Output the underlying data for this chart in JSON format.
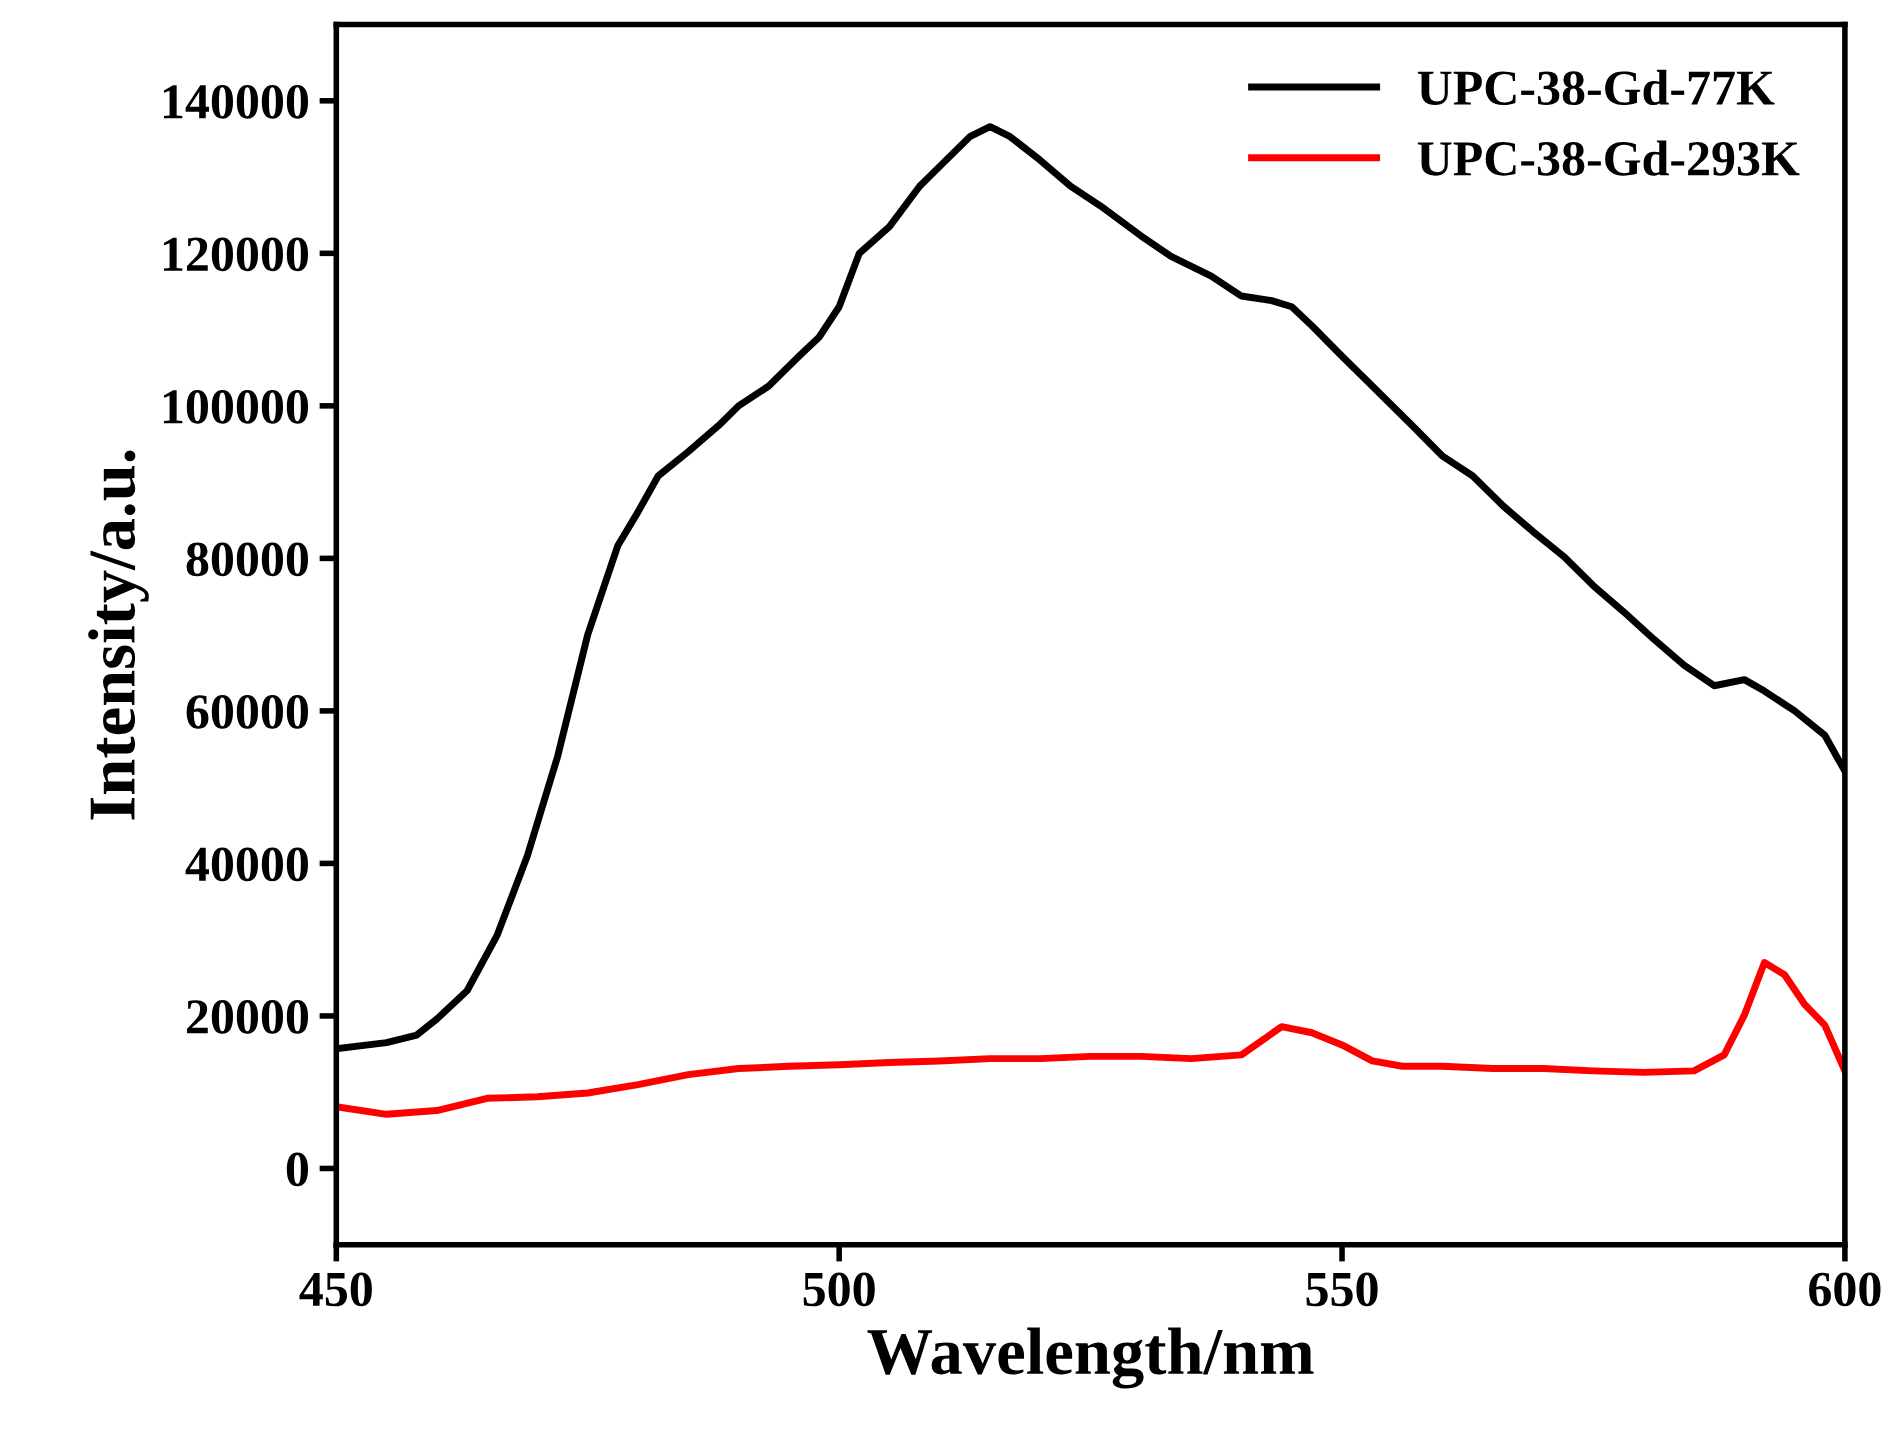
{
  "chart_data": {
    "type": "line",
    "xlabel": "Wavelength/nm",
    "ylabel": "Intensity/a.u.",
    "xlim": [
      450,
      600
    ],
    "xticks": [
      450,
      500,
      550,
      600
    ],
    "ylim": [
      -10000,
      150000
    ],
    "yticks": [
      0,
      20000,
      40000,
      60000,
      80000,
      100000,
      120000,
      140000
    ],
    "legend": "top right",
    "grid": false,
    "marker": "none",
    "line_style": "solid",
    "series": [
      {
        "name": "UPC-38-Gd-77K",
        "color": "#000000",
        "x": [
          450,
          455,
          458,
          460,
          463,
          466,
          469,
          472,
          475,
          478,
          480,
          482,
          485,
          488,
          490,
          493,
          496,
          498,
          500,
          502,
          505,
          508,
          510,
          513,
          515,
          517,
          520,
          523,
          526,
          530,
          533,
          537,
          540,
          543,
          545,
          547,
          550,
          553,
          557,
          560,
          563,
          566,
          569,
          572,
          575,
          578,
          581,
          584,
          587,
          590,
          592,
          595,
          598,
          600
        ],
        "values": [
          15700,
          16500,
          17500,
          19600,
          23300,
          30600,
          41000,
          54000,
          70000,
          81700,
          86100,
          90800,
          94000,
          97400,
          100000,
          102600,
          106500,
          109000,
          113000,
          120000,
          123500,
          128800,
          131400,
          135300,
          136600,
          135300,
          132200,
          128800,
          126200,
          122300,
          119600,
          117000,
          114400,
          113800,
          113000,
          110500,
          106500,
          102600,
          97400,
          93400,
          90800,
          86900,
          83500,
          80300,
          76400,
          73000,
          69400,
          66000,
          63300,
          64100,
          62600,
          60000,
          56800,
          52100
        ]
      },
      {
        "name": "UPC-38-Gd-293K",
        "color": "#ff0000",
        "x": [
          450,
          455,
          460,
          465,
          470,
          475,
          480,
          485,
          490,
          495,
          500,
          505,
          510,
          515,
          520,
          525,
          530,
          535,
          540,
          544,
          547,
          550,
          553,
          556,
          560,
          565,
          570,
          575,
          580,
          585,
          588,
          590,
          592,
          594,
          596,
          598,
          600
        ],
        "values": [
          8100,
          7100,
          7600,
          9200,
          9400,
          9900,
          11000,
          12300,
          13100,
          13400,
          13600,
          13900,
          14100,
          14400,
          14400,
          14700,
          14700,
          14400,
          14900,
          18600,
          17800,
          16200,
          14100,
          13400,
          13400,
          13100,
          13100,
          12800,
          12600,
          12800,
          14900,
          20100,
          27000,
          25400,
          21500,
          18800,
          12800
        ]
      }
    ]
  }
}
